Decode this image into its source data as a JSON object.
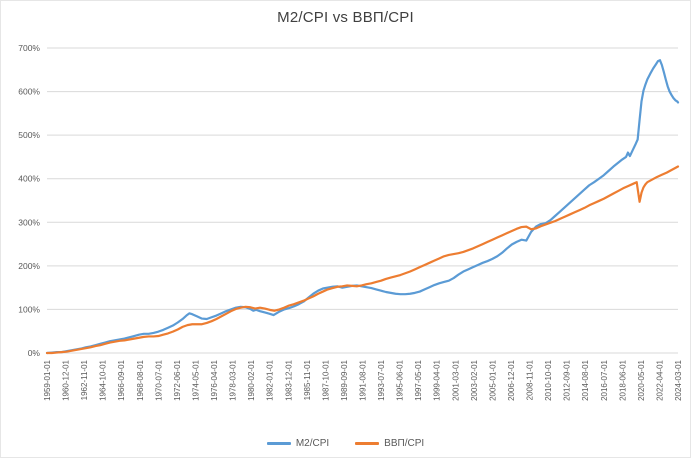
{
  "chart": {
    "title": "M2/CPI vs ВВП/CPI"
  },
  "chart_data": {
    "type": "line",
    "title": "M2/CPI vs ВВП/CPI",
    "xlabel": "",
    "ylabel": "",
    "ylim": [
      0,
      700
    ],
    "xlim": [
      1959.0,
      2024.1667
    ],
    "grid": "horizontal-only",
    "legend_position": "bottom",
    "y_tick_labels": [
      "0%",
      "100%",
      "200%",
      "300%",
      "400%",
      "500%",
      "600%",
      "700%"
    ],
    "x_tick_labels": [
      "1959-01-01",
      "1960-12-01",
      "1962-11-01",
      "1964-10-01",
      "1966-09-01",
      "1968-08-01",
      "1970-07-01",
      "1972-06-01",
      "1974-05-01",
      "1976-04-01",
      "1978-03-01",
      "1980-02-01",
      "1982-01-01",
      "1983-12-01",
      "1985-11-01",
      "1987-10-01",
      "1989-09-01",
      "1991-08-01",
      "1993-07-01",
      "1995-06-01",
      "1997-05-01",
      "1999-04-01",
      "2001-03-01",
      "2003-02-01",
      "2005-01-01",
      "2006-12-01",
      "2008-11-01",
      "2010-10-01",
      "2012-09-01",
      "2014-08-01",
      "2016-07-01",
      "2018-06-01",
      "2020-05-01",
      "2022-04-01",
      "2024-03-01"
    ],
    "series": [
      {
        "name": "M2/CPI",
        "color": "#5B9BD5",
        "points": [
          [
            1959.0,
            0
          ],
          [
            1959.5,
            1
          ],
          [
            1960.0,
            2
          ],
          [
            1960.5,
            2
          ],
          [
            1961.0,
            4
          ],
          [
            1961.5,
            6
          ],
          [
            1962.0,
            8
          ],
          [
            1962.5,
            10
          ],
          [
            1963.0,
            13
          ],
          [
            1963.5,
            15
          ],
          [
            1964.0,
            18
          ],
          [
            1964.5,
            21
          ],
          [
            1965.0,
            24
          ],
          [
            1965.5,
            27
          ],
          [
            1966.0,
            29
          ],
          [
            1966.5,
            31
          ],
          [
            1967.0,
            33
          ],
          [
            1967.5,
            36
          ],
          [
            1968.0,
            39
          ],
          [
            1968.5,
            42
          ],
          [
            1969.0,
            44
          ],
          [
            1969.5,
            44
          ],
          [
            1970.0,
            46
          ],
          [
            1970.5,
            49
          ],
          [
            1971.0,
            53
          ],
          [
            1971.5,
            58
          ],
          [
            1972.0,
            63
          ],
          [
            1972.5,
            70
          ],
          [
            1973.0,
            78
          ],
          [
            1973.4,
            86
          ],
          [
            1973.7,
            91
          ],
          [
            1974.0,
            89
          ],
          [
            1974.5,
            84
          ],
          [
            1975.0,
            79
          ],
          [
            1975.5,
            78
          ],
          [
            1976.0,
            82
          ],
          [
            1976.5,
            86
          ],
          [
            1977.0,
            91
          ],
          [
            1977.5,
            96
          ],
          [
            1978.0,
            100
          ],
          [
            1978.5,
            104
          ],
          [
            1979.0,
            106
          ],
          [
            1979.5,
            105
          ],
          [
            1980.0,
            101
          ],
          [
            1980.3,
            97
          ],
          [
            1980.6,
            99
          ],
          [
            1981.0,
            96
          ],
          [
            1981.5,
            93
          ],
          [
            1982.0,
            90
          ],
          [
            1982.4,
            87
          ],
          [
            1983.0,
            95
          ],
          [
            1983.5,
            100
          ],
          [
            1984.0,
            103
          ],
          [
            1984.5,
            107
          ],
          [
            1985.0,
            112
          ],
          [
            1985.5,
            118
          ],
          [
            1986.0,
            127
          ],
          [
            1986.5,
            136
          ],
          [
            1987.0,
            143
          ],
          [
            1987.5,
            148
          ],
          [
            1988.0,
            150
          ],
          [
            1988.5,
            152
          ],
          [
            1989.0,
            153
          ],
          [
            1989.5,
            150
          ],
          [
            1990.0,
            152
          ],
          [
            1990.5,
            154
          ],
          [
            1991.0,
            155
          ],
          [
            1991.5,
            153
          ],
          [
            1992.0,
            151
          ],
          [
            1992.5,
            149
          ],
          [
            1993.0,
            146
          ],
          [
            1993.5,
            143
          ],
          [
            1994.0,
            140
          ],
          [
            1994.5,
            138
          ],
          [
            1995.0,
            136
          ],
          [
            1995.5,
            135
          ],
          [
            1996.0,
            135
          ],
          [
            1996.5,
            136
          ],
          [
            1997.0,
            138
          ],
          [
            1997.5,
            141
          ],
          [
            1998.0,
            146
          ],
          [
            1998.5,
            151
          ],
          [
            1999.0,
            156
          ],
          [
            1999.5,
            160
          ],
          [
            2000.0,
            163
          ],
          [
            2000.5,
            166
          ],
          [
            2001.0,
            172
          ],
          [
            2001.5,
            180
          ],
          [
            2002.0,
            187
          ],
          [
            2002.5,
            192
          ],
          [
            2003.0,
            197
          ],
          [
            2003.5,
            202
          ],
          [
            2004.0,
            207
          ],
          [
            2004.5,
            211
          ],
          [
            2005.0,
            216
          ],
          [
            2005.5,
            222
          ],
          [
            2006.0,
            230
          ],
          [
            2006.5,
            240
          ],
          [
            2007.0,
            249
          ],
          [
            2007.5,
            255
          ],
          [
            2008.0,
            260
          ],
          [
            2008.5,
            258
          ],
          [
            2009.0,
            278
          ],
          [
            2009.5,
            290
          ],
          [
            2010.0,
            296
          ],
          [
            2010.5,
            298
          ],
          [
            2011.0,
            305
          ],
          [
            2011.5,
            315
          ],
          [
            2012.0,
            325
          ],
          [
            2012.5,
            335
          ],
          [
            2013.0,
            345
          ],
          [
            2013.5,
            355
          ],
          [
            2014.0,
            365
          ],
          [
            2014.5,
            375
          ],
          [
            2015.0,
            385
          ],
          [
            2015.5,
            392
          ],
          [
            2016.0,
            400
          ],
          [
            2016.5,
            408
          ],
          [
            2017.0,
            418
          ],
          [
            2017.5,
            428
          ],
          [
            2018.0,
            437
          ],
          [
            2018.4,
            444
          ],
          [
            2018.8,
            450
          ],
          [
            2019.0,
            460
          ],
          [
            2019.2,
            452
          ],
          [
            2019.5,
            466
          ],
          [
            2019.8,
            480
          ],
          [
            2020.0,
            490
          ],
          [
            2020.2,
            535
          ],
          [
            2020.4,
            578
          ],
          [
            2020.6,
            602
          ],
          [
            2020.8,
            616
          ],
          [
            2021.0,
            628
          ],
          [
            2021.3,
            641
          ],
          [
            2021.6,
            653
          ],
          [
            2021.9,
            663
          ],
          [
            2022.1,
            670
          ],
          [
            2022.3,
            672
          ],
          [
            2022.5,
            661
          ],
          [
            2022.7,
            645
          ],
          [
            2022.9,
            628
          ],
          [
            2023.1,
            612
          ],
          [
            2023.3,
            600
          ],
          [
            2023.5,
            592
          ],
          [
            2023.7,
            585
          ],
          [
            2023.9,
            580
          ],
          [
            2024.1,
            577
          ],
          [
            2024.1667,
            575
          ]
        ]
      },
      {
        "name": "ВВП/CPI",
        "color": "#ED7D31",
        "points": [
          [
            1959.0,
            0
          ],
          [
            1959.5,
            0
          ],
          [
            1960.0,
            1
          ],
          [
            1960.5,
            2
          ],
          [
            1961.0,
            3
          ],
          [
            1961.5,
            5
          ],
          [
            1962.0,
            7
          ],
          [
            1962.5,
            9
          ],
          [
            1963.0,
            11
          ],
          [
            1963.5,
            13
          ],
          [
            1964.0,
            16
          ],
          [
            1964.5,
            18
          ],
          [
            1965.0,
            21
          ],
          [
            1965.5,
            24
          ],
          [
            1966.0,
            26
          ],
          [
            1966.5,
            28
          ],
          [
            1967.0,
            29
          ],
          [
            1967.5,
            31
          ],
          [
            1968.0,
            33
          ],
          [
            1968.5,
            35
          ],
          [
            1969.0,
            37
          ],
          [
            1969.5,
            38
          ],
          [
            1970.0,
            38
          ],
          [
            1970.5,
            39
          ],
          [
            1971.0,
            42
          ],
          [
            1971.5,
            45
          ],
          [
            1972.0,
            49
          ],
          [
            1972.5,
            54
          ],
          [
            1973.0,
            60
          ],
          [
            1973.5,
            64
          ],
          [
            1974.0,
            66
          ],
          [
            1974.5,
            66
          ],
          [
            1975.0,
            66
          ],
          [
            1975.5,
            69
          ],
          [
            1976.0,
            73
          ],
          [
            1976.5,
            78
          ],
          [
            1977.0,
            84
          ],
          [
            1977.5,
            90
          ],
          [
            1978.0,
            96
          ],
          [
            1978.5,
            101
          ],
          [
            1979.0,
            104
          ],
          [
            1979.5,
            106
          ],
          [
            1980.0,
            105
          ],
          [
            1980.5,
            102
          ],
          [
            1981.0,
            104
          ],
          [
            1981.5,
            102
          ],
          [
            1982.0,
            99
          ],
          [
            1982.5,
            97
          ],
          [
            1983.0,
            100
          ],
          [
            1983.5,
            104
          ],
          [
            1984.0,
            109
          ],
          [
            1984.5,
            112
          ],
          [
            1985.0,
            116
          ],
          [
            1985.5,
            120
          ],
          [
            1986.0,
            125
          ],
          [
            1986.5,
            130
          ],
          [
            1987.0,
            136
          ],
          [
            1987.5,
            141
          ],
          [
            1988.0,
            146
          ],
          [
            1988.5,
            149
          ],
          [
            1989.0,
            152
          ],
          [
            1989.5,
            153
          ],
          [
            1990.0,
            155
          ],
          [
            1990.5,
            154
          ],
          [
            1991.0,
            153
          ],
          [
            1991.5,
            155
          ],
          [
            1992.0,
            158
          ],
          [
            1992.5,
            160
          ],
          [
            1993.0,
            163
          ],
          [
            1993.5,
            166
          ],
          [
            1994.0,
            170
          ],
          [
            1994.5,
            173
          ],
          [
            1995.0,
            176
          ],
          [
            1995.5,
            179
          ],
          [
            1996.0,
            183
          ],
          [
            1996.5,
            187
          ],
          [
            1997.0,
            192
          ],
          [
            1997.5,
            197
          ],
          [
            1998.0,
            202
          ],
          [
            1998.5,
            207
          ],
          [
            1999.0,
            212
          ],
          [
            1999.5,
            217
          ],
          [
            2000.0,
            222
          ],
          [
            2000.5,
            225
          ],
          [
            2001.0,
            227
          ],
          [
            2001.5,
            229
          ],
          [
            2002.0,
            232
          ],
          [
            2002.5,
            236
          ],
          [
            2003.0,
            240
          ],
          [
            2003.5,
            245
          ],
          [
            2004.0,
            250
          ],
          [
            2004.5,
            255
          ],
          [
            2005.0,
            260
          ],
          [
            2005.5,
            265
          ],
          [
            2006.0,
            270
          ],
          [
            2006.5,
            275
          ],
          [
            2007.0,
            280
          ],
          [
            2007.5,
            285
          ],
          [
            2008.0,
            289
          ],
          [
            2008.5,
            290
          ],
          [
            2009.0,
            284
          ],
          [
            2009.5,
            286
          ],
          [
            2010.0,
            291
          ],
          [
            2010.5,
            295
          ],
          [
            2011.0,
            299
          ],
          [
            2011.5,
            303
          ],
          [
            2012.0,
            308
          ],
          [
            2012.5,
            313
          ],
          [
            2013.0,
            318
          ],
          [
            2013.5,
            323
          ],
          [
            2014.0,
            328
          ],
          [
            2014.5,
            333
          ],
          [
            2015.0,
            339
          ],
          [
            2015.5,
            344
          ],
          [
            2016.0,
            349
          ],
          [
            2016.5,
            354
          ],
          [
            2017.0,
            360
          ],
          [
            2017.5,
            366
          ],
          [
            2018.0,
            372
          ],
          [
            2018.5,
            378
          ],
          [
            2019.0,
            383
          ],
          [
            2019.5,
            388
          ],
          [
            2019.9,
            392
          ],
          [
            2020.2,
            347
          ],
          [
            2020.4,
            368
          ],
          [
            2020.6,
            380
          ],
          [
            2020.8,
            387
          ],
          [
            2021.0,
            392
          ],
          [
            2021.5,
            398
          ],
          [
            2022.0,
            404
          ],
          [
            2022.5,
            409
          ],
          [
            2023.0,
            414
          ],
          [
            2023.5,
            420
          ],
          [
            2024.0,
            426
          ],
          [
            2024.1667,
            428
          ]
        ]
      }
    ],
    "style": {
      "gridline_color": "#d9d9d9",
      "tick_label_color": "#595959",
      "title_color": "#404040"
    }
  }
}
